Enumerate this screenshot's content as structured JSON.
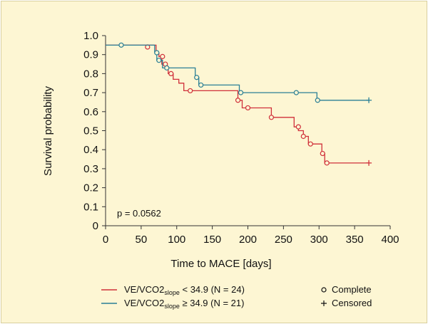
{
  "chart_data": {
    "type": "line",
    "title": "",
    "xlabel": "Time to MACE [days]",
    "ylabel": "Survival probability",
    "xlim": [
      0,
      400
    ],
    "ylim": [
      0,
      1.0
    ],
    "x_ticks": [
      0,
      50,
      100,
      150,
      200,
      250,
      300,
      350,
      400
    ],
    "y_ticks": [
      0,
      0.1,
      0.2,
      0.3,
      0.4,
      0.5,
      0.6,
      0.7,
      0.8,
      0.9,
      1.0
    ],
    "y_tick_labels": [
      "0",
      "0.1",
      "0.2",
      "0.3",
      "0.4",
      "0.5",
      "0.6",
      "0.7",
      "0.8",
      "0.9",
      "1.0"
    ],
    "grid": false,
    "annotation": "p = 0.0562",
    "series": [
      {
        "legend_main": "VE/VCO2",
        "legend_sub": "slope",
        "legend_rest": " < 34.9 (N = 24)",
        "color": "#d0303a",
        "steps": [
          [
            0,
            0.95
          ],
          [
            71,
            0.95
          ],
          [
            71,
            0.91
          ],
          [
            75,
            0.91
          ],
          [
            75,
            0.89
          ],
          [
            79,
            0.89
          ],
          [
            79,
            0.85
          ],
          [
            84,
            0.85
          ],
          [
            84,
            0.83
          ],
          [
            88,
            0.83
          ],
          [
            88,
            0.8
          ],
          [
            95,
            0.8
          ],
          [
            95,
            0.77
          ],
          [
            103,
            0.77
          ],
          [
            103,
            0.75
          ],
          [
            110,
            0.75
          ],
          [
            110,
            0.71
          ],
          [
            119,
            0.71
          ],
          [
            119,
            0.71
          ],
          [
            186,
            0.71
          ],
          [
            186,
            0.66
          ],
          [
            192,
            0.66
          ],
          [
            192,
            0.62
          ],
          [
            200,
            0.62
          ],
          [
            200,
            0.62
          ],
          [
            233,
            0.62
          ],
          [
            233,
            0.57
          ],
          [
            265,
            0.57
          ],
          [
            265,
            0.52
          ],
          [
            271,
            0.52
          ],
          [
            271,
            0.5
          ],
          [
            278,
            0.5
          ],
          [
            278,
            0.47
          ],
          [
            285,
            0.47
          ],
          [
            285,
            0.43
          ],
          [
            295,
            0.43
          ],
          [
            295,
            0.43
          ],
          [
            304,
            0.43
          ],
          [
            304,
            0.38
          ],
          [
            308,
            0.38
          ],
          [
            308,
            0.33
          ],
          [
            313,
            0.33
          ],
          [
            313,
            0.33
          ],
          [
            370,
            0.33
          ]
        ],
        "events": [
          [
            59,
            0.94
          ],
          [
            80,
            0.89
          ],
          [
            84,
            0.85
          ],
          [
            92,
            0.8
          ],
          [
            119,
            0.71
          ],
          [
            186,
            0.66
          ],
          [
            200,
            0.62
          ],
          [
            233,
            0.57
          ],
          [
            271,
            0.52
          ],
          [
            278,
            0.47
          ],
          [
            288,
            0.43
          ],
          [
            305,
            0.38
          ],
          [
            311,
            0.33
          ]
        ],
        "censored": [
          [
            370,
            0.33
          ]
        ]
      },
      {
        "legend_main": "VE/VCO2",
        "legend_sub": "slope",
        "legend_rest": " ≥ 34.9 (N = 21)",
        "color": "#2a7f96",
        "steps": [
          [
            0,
            0.95
          ],
          [
            69,
            0.95
          ],
          [
            69,
            0.91
          ],
          [
            72,
            0.91
          ],
          [
            72,
            0.87
          ],
          [
            80,
            0.87
          ],
          [
            80,
            0.83
          ],
          [
            84,
            0.83
          ],
          [
            84,
            0.83
          ],
          [
            126,
            0.83
          ],
          [
            126,
            0.78
          ],
          [
            131,
            0.78
          ],
          [
            131,
            0.74
          ],
          [
            136,
            0.74
          ],
          [
            136,
            0.74
          ],
          [
            188,
            0.74
          ],
          [
            188,
            0.7
          ],
          [
            297,
            0.7
          ],
          [
            297,
            0.66
          ],
          [
            370,
            0.66
          ]
        ],
        "events": [
          [
            22,
            0.95
          ],
          [
            72,
            0.91
          ],
          [
            75,
            0.87
          ],
          [
            86,
            0.83
          ],
          [
            128,
            0.78
          ],
          [
            134,
            0.74
          ],
          [
            190,
            0.7
          ],
          [
            268,
            0.7
          ],
          [
            298,
            0.66
          ]
        ],
        "censored": [
          [
            370,
            0.66
          ]
        ]
      }
    ],
    "marker_legend": [
      {
        "marker": "circle",
        "label": "Complete"
      },
      {
        "marker": "plus",
        "label": "Censored"
      }
    ]
  }
}
